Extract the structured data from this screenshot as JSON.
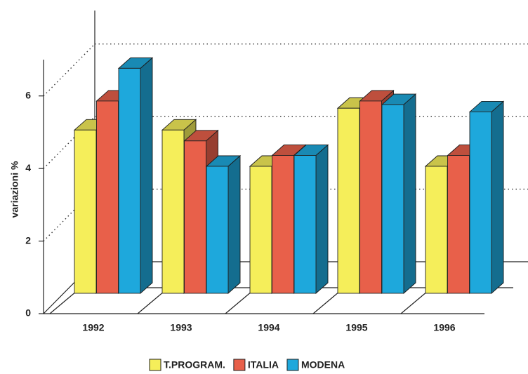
{
  "chart_data": {
    "type": "bar3d",
    "y_label": "variazioni %",
    "categories": [
      "1992",
      "1993",
      "1994",
      "1995",
      "1996"
    ],
    "series": [
      {
        "name": "T.PROGRAM.",
        "color": "#f5ee5a",
        "values": [
          4.5,
          4.5,
          3.5,
          5.1,
          3.5
        ]
      },
      {
        "name": "ITALIA",
        "color": "#e8604a",
        "values": [
          5.3,
          4.2,
          3.8,
          5.3,
          3.8
        ]
      },
      {
        "name": "MODENA",
        "color": "#1ea8dc",
        "values": [
          6.2,
          3.5,
          3.8,
          5.2,
          5.0
        ]
      }
    ],
    "ylim": [
      0,
      7
    ],
    "yticks": [
      0,
      2,
      4,
      6
    ],
    "grid": true
  }
}
